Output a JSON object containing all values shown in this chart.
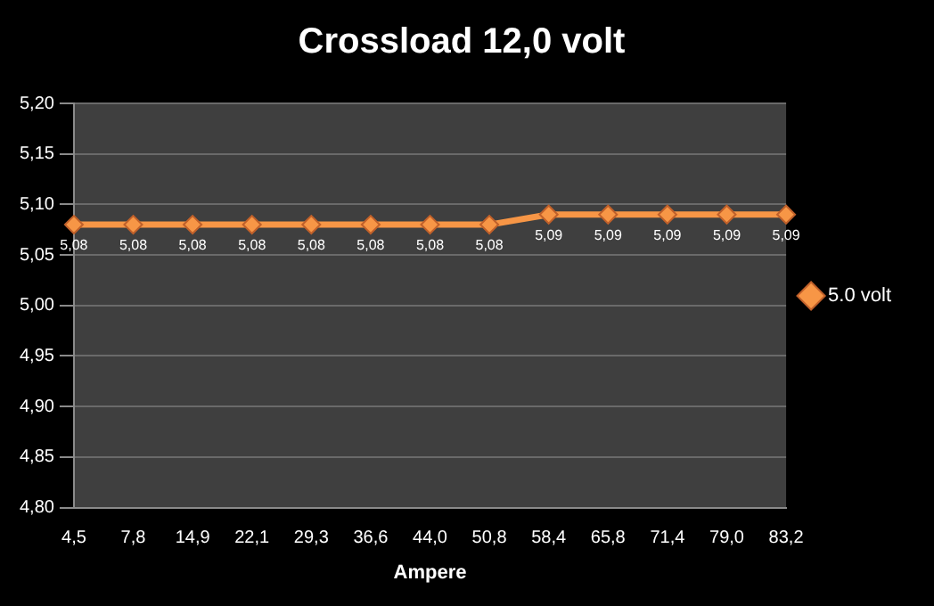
{
  "chart_data": {
    "type": "line",
    "title": "Crossload 12,0 volt",
    "xlabel": "Ampere",
    "categories": [
      "4,5",
      "7,8",
      "14,9",
      "22,1",
      "29,3",
      "36,6",
      "44,0",
      "50,8",
      "58,4",
      "65,8",
      "71,4",
      "79,0",
      "83,2"
    ],
    "series": [
      {
        "name": "5.0 volt",
        "color": "#f79646",
        "values": [
          5.08,
          5.08,
          5.08,
          5.08,
          5.08,
          5.08,
          5.08,
          5.08,
          5.09,
          5.09,
          5.09,
          5.09,
          5.09
        ],
        "value_labels": [
          "5,08",
          "5,08",
          "5,08",
          "5,08",
          "5,08",
          "5,08",
          "5,08",
          "5,08",
          "5,09",
          "5,09",
          "5,09",
          "5,09",
          "5,09"
        ]
      }
    ],
    "ylim": [
      4.8,
      5.2
    ],
    "yticks": [
      {
        "value": 4.8,
        "label": "4,80"
      },
      {
        "value": 4.85,
        "label": "4,85"
      },
      {
        "value": 4.9,
        "label": "4,90"
      },
      {
        "value": 4.95,
        "label": "4,95"
      },
      {
        "value": 5.0,
        "label": "5,00"
      },
      {
        "value": 5.05,
        "label": "5,05"
      },
      {
        "value": 5.1,
        "label": "5,10"
      },
      {
        "value": 5.15,
        "label": "5,15"
      },
      {
        "value": 5.2,
        "label": "5,20"
      }
    ],
    "grid": "y",
    "legend": "right",
    "marker": "diamond",
    "line_style": "solid"
  }
}
